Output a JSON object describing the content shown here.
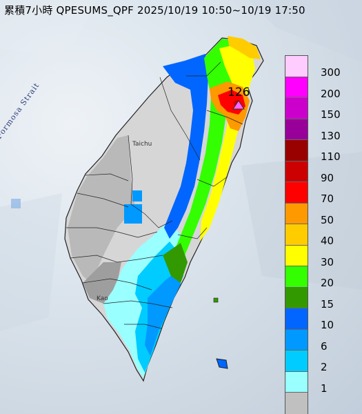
{
  "title": "累積7小時 QPESUMS_QPF 2025/10/19 10:50~10/19 17:50",
  "labels": {
    "strait": "Formosa Strait",
    "taichung": "Taichu",
    "kaohsiung": "Kao",
    "max_value": "126"
  },
  "legend": [
    {
      "label": "300",
      "color": "#ffccff"
    },
    {
      "label": "200",
      "color": "#ff00ff"
    },
    {
      "label": "150",
      "color": "#cc00cc"
    },
    {
      "label": "130",
      "color": "#990099"
    },
    {
      "label": "110",
      "color": "#990000"
    },
    {
      "label": "90",
      "color": "#cc0000"
    },
    {
      "label": "70",
      "color": "#ff0000"
    },
    {
      "label": "50",
      "color": "#ff9900"
    },
    {
      "label": "40",
      "color": "#ffcc00"
    },
    {
      "label": "30",
      "color": "#ffff00"
    },
    {
      "label": "20",
      "color": "#33ff00"
    },
    {
      "label": "15",
      "color": "#339900"
    },
    {
      "label": "10",
      "color": "#0066ff"
    },
    {
      "label": "6",
      "color": "#0099ff"
    },
    {
      "label": "2",
      "color": "#00ccff"
    },
    {
      "label": "1",
      "color": "#99ffff"
    },
    {
      "label": "",
      "color": "#c0c0c0"
    }
  ],
  "colors": {
    "land": "#d8d8d8",
    "sea": "#d4dee8",
    "max_marker": "#ff66ff"
  }
}
